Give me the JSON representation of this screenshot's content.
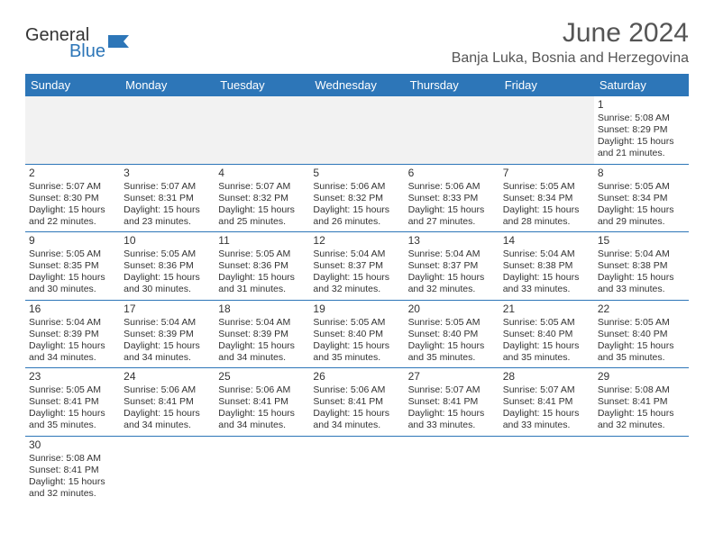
{
  "brand": {
    "name1": "General",
    "name2": "Blue"
  },
  "title": "June 2024",
  "location": "Banja Luka, Bosnia and Herzegovina",
  "colors": {
    "header_bg": "#2d76b8",
    "header_text": "#ffffff",
    "row_border": "#2d76b8",
    "empty_bg": "#f2f2f2",
    "text": "#333333",
    "title_text": "#555555"
  },
  "daysOfWeek": [
    "Sunday",
    "Monday",
    "Tuesday",
    "Wednesday",
    "Thursday",
    "Friday",
    "Saturday"
  ],
  "firstDayIndex": 6,
  "daysInMonth": 30,
  "cells": {
    "1": {
      "sunrise": "Sunrise: 5:08 AM",
      "sunset": "Sunset: 8:29 PM",
      "daylight": "Daylight: 15 hours and 21 minutes."
    },
    "2": {
      "sunrise": "Sunrise: 5:07 AM",
      "sunset": "Sunset: 8:30 PM",
      "daylight": "Daylight: 15 hours and 22 minutes."
    },
    "3": {
      "sunrise": "Sunrise: 5:07 AM",
      "sunset": "Sunset: 8:31 PM",
      "daylight": "Daylight: 15 hours and 23 minutes."
    },
    "4": {
      "sunrise": "Sunrise: 5:07 AM",
      "sunset": "Sunset: 8:32 PM",
      "daylight": "Daylight: 15 hours and 25 minutes."
    },
    "5": {
      "sunrise": "Sunrise: 5:06 AM",
      "sunset": "Sunset: 8:32 PM",
      "daylight": "Daylight: 15 hours and 26 minutes."
    },
    "6": {
      "sunrise": "Sunrise: 5:06 AM",
      "sunset": "Sunset: 8:33 PM",
      "daylight": "Daylight: 15 hours and 27 minutes."
    },
    "7": {
      "sunrise": "Sunrise: 5:05 AM",
      "sunset": "Sunset: 8:34 PM",
      "daylight": "Daylight: 15 hours and 28 minutes."
    },
    "8": {
      "sunrise": "Sunrise: 5:05 AM",
      "sunset": "Sunset: 8:34 PM",
      "daylight": "Daylight: 15 hours and 29 minutes."
    },
    "9": {
      "sunrise": "Sunrise: 5:05 AM",
      "sunset": "Sunset: 8:35 PM",
      "daylight": "Daylight: 15 hours and 30 minutes."
    },
    "10": {
      "sunrise": "Sunrise: 5:05 AM",
      "sunset": "Sunset: 8:36 PM",
      "daylight": "Daylight: 15 hours and 30 minutes."
    },
    "11": {
      "sunrise": "Sunrise: 5:05 AM",
      "sunset": "Sunset: 8:36 PM",
      "daylight": "Daylight: 15 hours and 31 minutes."
    },
    "12": {
      "sunrise": "Sunrise: 5:04 AM",
      "sunset": "Sunset: 8:37 PM",
      "daylight": "Daylight: 15 hours and 32 minutes."
    },
    "13": {
      "sunrise": "Sunrise: 5:04 AM",
      "sunset": "Sunset: 8:37 PM",
      "daylight": "Daylight: 15 hours and 32 minutes."
    },
    "14": {
      "sunrise": "Sunrise: 5:04 AM",
      "sunset": "Sunset: 8:38 PM",
      "daylight": "Daylight: 15 hours and 33 minutes."
    },
    "15": {
      "sunrise": "Sunrise: 5:04 AM",
      "sunset": "Sunset: 8:38 PM",
      "daylight": "Daylight: 15 hours and 33 minutes."
    },
    "16": {
      "sunrise": "Sunrise: 5:04 AM",
      "sunset": "Sunset: 8:39 PM",
      "daylight": "Daylight: 15 hours and 34 minutes."
    },
    "17": {
      "sunrise": "Sunrise: 5:04 AM",
      "sunset": "Sunset: 8:39 PM",
      "daylight": "Daylight: 15 hours and 34 minutes."
    },
    "18": {
      "sunrise": "Sunrise: 5:04 AM",
      "sunset": "Sunset: 8:39 PM",
      "daylight": "Daylight: 15 hours and 34 minutes."
    },
    "19": {
      "sunrise": "Sunrise: 5:05 AM",
      "sunset": "Sunset: 8:40 PM",
      "daylight": "Daylight: 15 hours and 35 minutes."
    },
    "20": {
      "sunrise": "Sunrise: 5:05 AM",
      "sunset": "Sunset: 8:40 PM",
      "daylight": "Daylight: 15 hours and 35 minutes."
    },
    "21": {
      "sunrise": "Sunrise: 5:05 AM",
      "sunset": "Sunset: 8:40 PM",
      "daylight": "Daylight: 15 hours and 35 minutes."
    },
    "22": {
      "sunrise": "Sunrise: 5:05 AM",
      "sunset": "Sunset: 8:40 PM",
      "daylight": "Daylight: 15 hours and 35 minutes."
    },
    "23": {
      "sunrise": "Sunrise: 5:05 AM",
      "sunset": "Sunset: 8:41 PM",
      "daylight": "Daylight: 15 hours and 35 minutes."
    },
    "24": {
      "sunrise": "Sunrise: 5:06 AM",
      "sunset": "Sunset: 8:41 PM",
      "daylight": "Daylight: 15 hours and 34 minutes."
    },
    "25": {
      "sunrise": "Sunrise: 5:06 AM",
      "sunset": "Sunset: 8:41 PM",
      "daylight": "Daylight: 15 hours and 34 minutes."
    },
    "26": {
      "sunrise": "Sunrise: 5:06 AM",
      "sunset": "Sunset: 8:41 PM",
      "daylight": "Daylight: 15 hours and 34 minutes."
    },
    "27": {
      "sunrise": "Sunrise: 5:07 AM",
      "sunset": "Sunset: 8:41 PM",
      "daylight": "Daylight: 15 hours and 33 minutes."
    },
    "28": {
      "sunrise": "Sunrise: 5:07 AM",
      "sunset": "Sunset: 8:41 PM",
      "daylight": "Daylight: 15 hours and 33 minutes."
    },
    "29": {
      "sunrise": "Sunrise: 5:08 AM",
      "sunset": "Sunset: 8:41 PM",
      "daylight": "Daylight: 15 hours and 32 minutes."
    },
    "30": {
      "sunrise": "Sunrise: 5:08 AM",
      "sunset": "Sunset: 8:41 PM",
      "daylight": "Daylight: 15 hours and 32 minutes."
    }
  }
}
